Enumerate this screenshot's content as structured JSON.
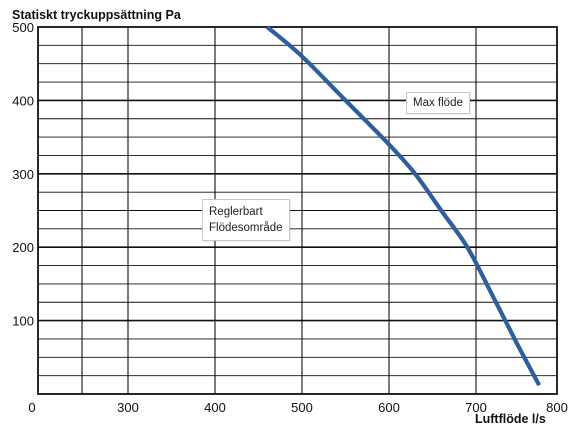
{
  "chart_data": {
    "type": "line",
    "title": "",
    "ylabel": "Statiskt tryckuppsättning Pa",
    "xlabel": "Luftflöde l/s",
    "x_ticks": [
      0,
      300,
      400,
      500,
      600,
      700,
      800
    ],
    "x_tick_labels": [
      "0",
      "300",
      "400",
      "500",
      "600",
      "700",
      "800"
    ],
    "y_ticks": [
      100,
      200,
      300,
      400,
      500
    ],
    "y_tick_labels": [
      "100",
      "200",
      "300",
      "400",
      "500"
    ],
    "grid": true,
    "series": [
      {
        "color": "#2f5f9a",
        "points": [
          {
            "x": 460,
            "y": 500
          },
          {
            "x": 500,
            "y": 460
          },
          {
            "x": 550,
            "y": 400
          },
          {
            "x": 600,
            "y": 340
          },
          {
            "x": 630,
            "y": 300
          },
          {
            "x": 660,
            "y": 250
          },
          {
            "x": 690,
            "y": 200
          },
          {
            "x": 720,
            "y": 135
          },
          {
            "x": 750,
            "y": 70
          },
          {
            "x": 778,
            "y": 12
          }
        ]
      }
    ],
    "annotations": [
      "Max flöde",
      "Reglerbart",
      "Flödesområde"
    ]
  }
}
